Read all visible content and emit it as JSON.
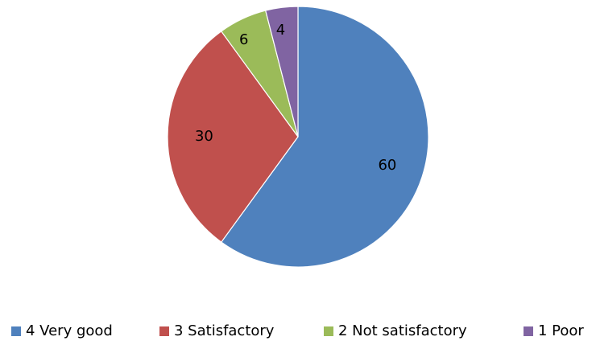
{
  "chart_data": {
    "type": "pie",
    "title": "",
    "categories": [
      "4 Very good",
      "3 Satisfactory",
      "2 Not satisfactory",
      "1 Poor"
    ],
    "values": [
      60,
      30,
      6,
      4
    ],
    "data_labels": [
      "60",
      "30",
      "6",
      "4"
    ],
    "colors": [
      "#4f81bd",
      "#c0504d",
      "#9bbb59",
      "#8064a2"
    ],
    "start_angle_deg": 0,
    "direction": "clockwise",
    "legend": {
      "placement": "bottom",
      "entries": [
        "4 Very good",
        "3 Satisfactory",
        "2 Not satisfactory",
        "1 Poor"
      ]
    }
  }
}
